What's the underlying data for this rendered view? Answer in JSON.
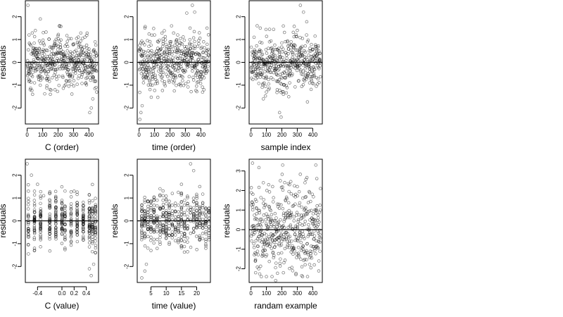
{
  "chart_data": [
    {
      "type": "scatter",
      "xlabel": "C (order)",
      "ylabel": "residuals",
      "xlim": [
        -12,
        462
      ],
      "ylim": [
        -2.7,
        2.7
      ],
      "xticks": [
        0,
        100,
        200,
        300,
        400
      ],
      "yticks": [
        -2,
        -1,
        0,
        1,
        2
      ],
      "hline": 0,
      "x_mode": "uniform",
      "series": [
        {
          "x": [
            5,
            12,
            20,
            35,
            60,
            85,
            110,
            150,
            180,
            200,
            230,
            260,
            300,
            330,
            350,
            380,
            405,
            415,
            425,
            440,
            445,
            450
          ],
          "y": [
            2.5,
            1.2,
            -1.2,
            -1.4,
            0.6,
            1.9,
            0.5,
            -1.4,
            -1.2,
            0.7,
            -0.6,
            0.5,
            -0.4,
            0.8,
            0.7,
            -0.9,
            -2.2,
            -2.0,
            -1.6,
            0.9,
            0.4,
            -1.3
          ]
        }
      ]
    },
    {
      "type": "scatter",
      "xlabel": "time (order)",
      "ylabel": "residuals",
      "xlim": [
        -12,
        462
      ],
      "ylim": [
        -2.7,
        2.7
      ],
      "xticks": [
        0,
        100,
        200,
        300,
        400
      ],
      "yticks": [
        -2,
        -1,
        0,
        1,
        2
      ],
      "hline": 0,
      "x_mode": "uniform",
      "series": [
        {
          "x": [
            5,
            12,
            20,
            30,
            60,
            100,
            150,
            200,
            250,
            300,
            330,
            345,
            360,
            380,
            400,
            420,
            440,
            450
          ],
          "y": [
            -2.5,
            -2.2,
            -1.9,
            -0.6,
            0.5,
            1.2,
            -0.8,
            0.9,
            1.2,
            0.6,
            1.5,
            2.5,
            2.2,
            0.7,
            -0.4,
            -1.2,
            1.5,
            0.3
          ]
        }
      ]
    },
    {
      "type": "scatter",
      "xlabel": "sample index",
      "ylabel": "residuals",
      "xlim": [
        -12,
        462
      ],
      "ylim": [
        -2.7,
        2.7
      ],
      "xticks": [
        0,
        100,
        200,
        300,
        400
      ],
      "yticks": [
        -2,
        -1,
        0,
        1,
        2
      ],
      "hline": 0,
      "x_mode": "uniform",
      "series": [
        {
          "x": [
            20,
            40,
            60,
            80,
            100,
            120,
            170,
            185,
            195,
            210,
            260,
            300,
            320,
            340,
            360,
            380,
            400,
            420,
            440
          ],
          "y": [
            1.1,
            1.6,
            1.5,
            -1.6,
            -1.3,
            0.9,
            -1.2,
            -2.2,
            -2.4,
            -1.4,
            0.9,
            1.4,
            2.5,
            2.2,
            1.2,
            -0.9,
            -0.6,
            0.7,
            0.5
          ]
        }
      ]
    },
    {
      "type": "scatter",
      "xlabel": "C (value)",
      "ylabel": "residuals",
      "xlim": [
        -0.6,
        0.6
      ],
      "ylim": [
        -2.7,
        2.7
      ],
      "xticks": [
        -0.4,
        0.0,
        0.2,
        0.4
      ],
      "xtick_labels": [
        "-0.4",
        "0.0",
        "0.2",
        "0.4"
      ],
      "yticks": [
        -2,
        -1,
        0,
        1,
        2
      ],
      "hline": 0,
      "x_mode": "columns",
      "x_levels": [
        -0.55,
        -0.45,
        -0.35,
        -0.2,
        -0.1,
        0.0,
        0.05,
        0.15,
        0.25,
        0.35,
        0.45,
        0.5,
        0.55
      ],
      "series": [
        {
          "x": [
            -0.57,
            -0.55,
            -0.5,
            -0.45,
            -0.4,
            -0.3,
            -0.1,
            0.0,
            0.05,
            0.2,
            0.45,
            0.48,
            0.52,
            0.55,
            0.58
          ],
          "y": [
            2.5,
            1.3,
            2.0,
            -1.2,
            1.6,
            1.1,
            1.0,
            0.9,
            -1.2,
            1.3,
            -2.1,
            -2.4,
            -1.9,
            -1.4,
            0.6
          ]
        }
      ]
    },
    {
      "type": "scatter",
      "xlabel": "time (value)",
      "ylabel": "residuals",
      "xlim": [
        0.5,
        24.5
      ],
      "ylim": [
        -2.7,
        2.7
      ],
      "xticks": [
        5,
        10,
        15,
        20
      ],
      "yticks": [
        -2,
        -1,
        0,
        1,
        2
      ],
      "hline": 0,
      "x_mode": "columns",
      "x_levels": [
        2,
        3,
        4,
        5,
        6,
        7,
        8,
        9,
        10,
        11,
        12,
        13,
        14,
        15,
        16,
        17,
        18,
        19,
        20,
        21,
        22,
        23,
        24
      ],
      "series": [
        {
          "x": [
            2,
            3,
            3.5,
            5,
            6,
            9,
            12,
            15,
            18,
            19,
            20,
            21,
            22,
            23,
            24
          ],
          "y": [
            -2.5,
            -2.2,
            -1.9,
            -1.3,
            0.9,
            1.1,
            1.2,
            1.6,
            2.5,
            2.2,
            0.7,
            1.5,
            0.8,
            -1.2,
            0.4
          ]
        }
      ]
    },
    {
      "type": "scatter",
      "xlabel": "randam example",
      "ylabel": "residuals",
      "xlim": [
        -12,
        462
      ],
      "ylim": [
        -2.7,
        3.6
      ],
      "xticks": [
        0,
        100,
        200,
        300,
        400
      ],
      "yticks": [
        -2,
        -1,
        0,
        1,
        2,
        3
      ],
      "hline": 0,
      "x_mode": "uniform",
      "series": [
        {
          "x": [
            10,
            30,
            50,
            80,
            100,
            140,
            160,
            190,
            210,
            250,
            270,
            300,
            330,
            350,
            380,
            410,
            420,
            440,
            450
          ],
          "y": [
            3.4,
            -2.2,
            -2.0,
            2.4,
            -2.4,
            2.2,
            -2.6,
            2.5,
            -2.2,
            2.3,
            -2.1,
            2.2,
            -1.9,
            2.4,
            1.9,
            -1.8,
            3.3,
            -1.6,
            2.1
          ]
        }
      ]
    }
  ]
}
